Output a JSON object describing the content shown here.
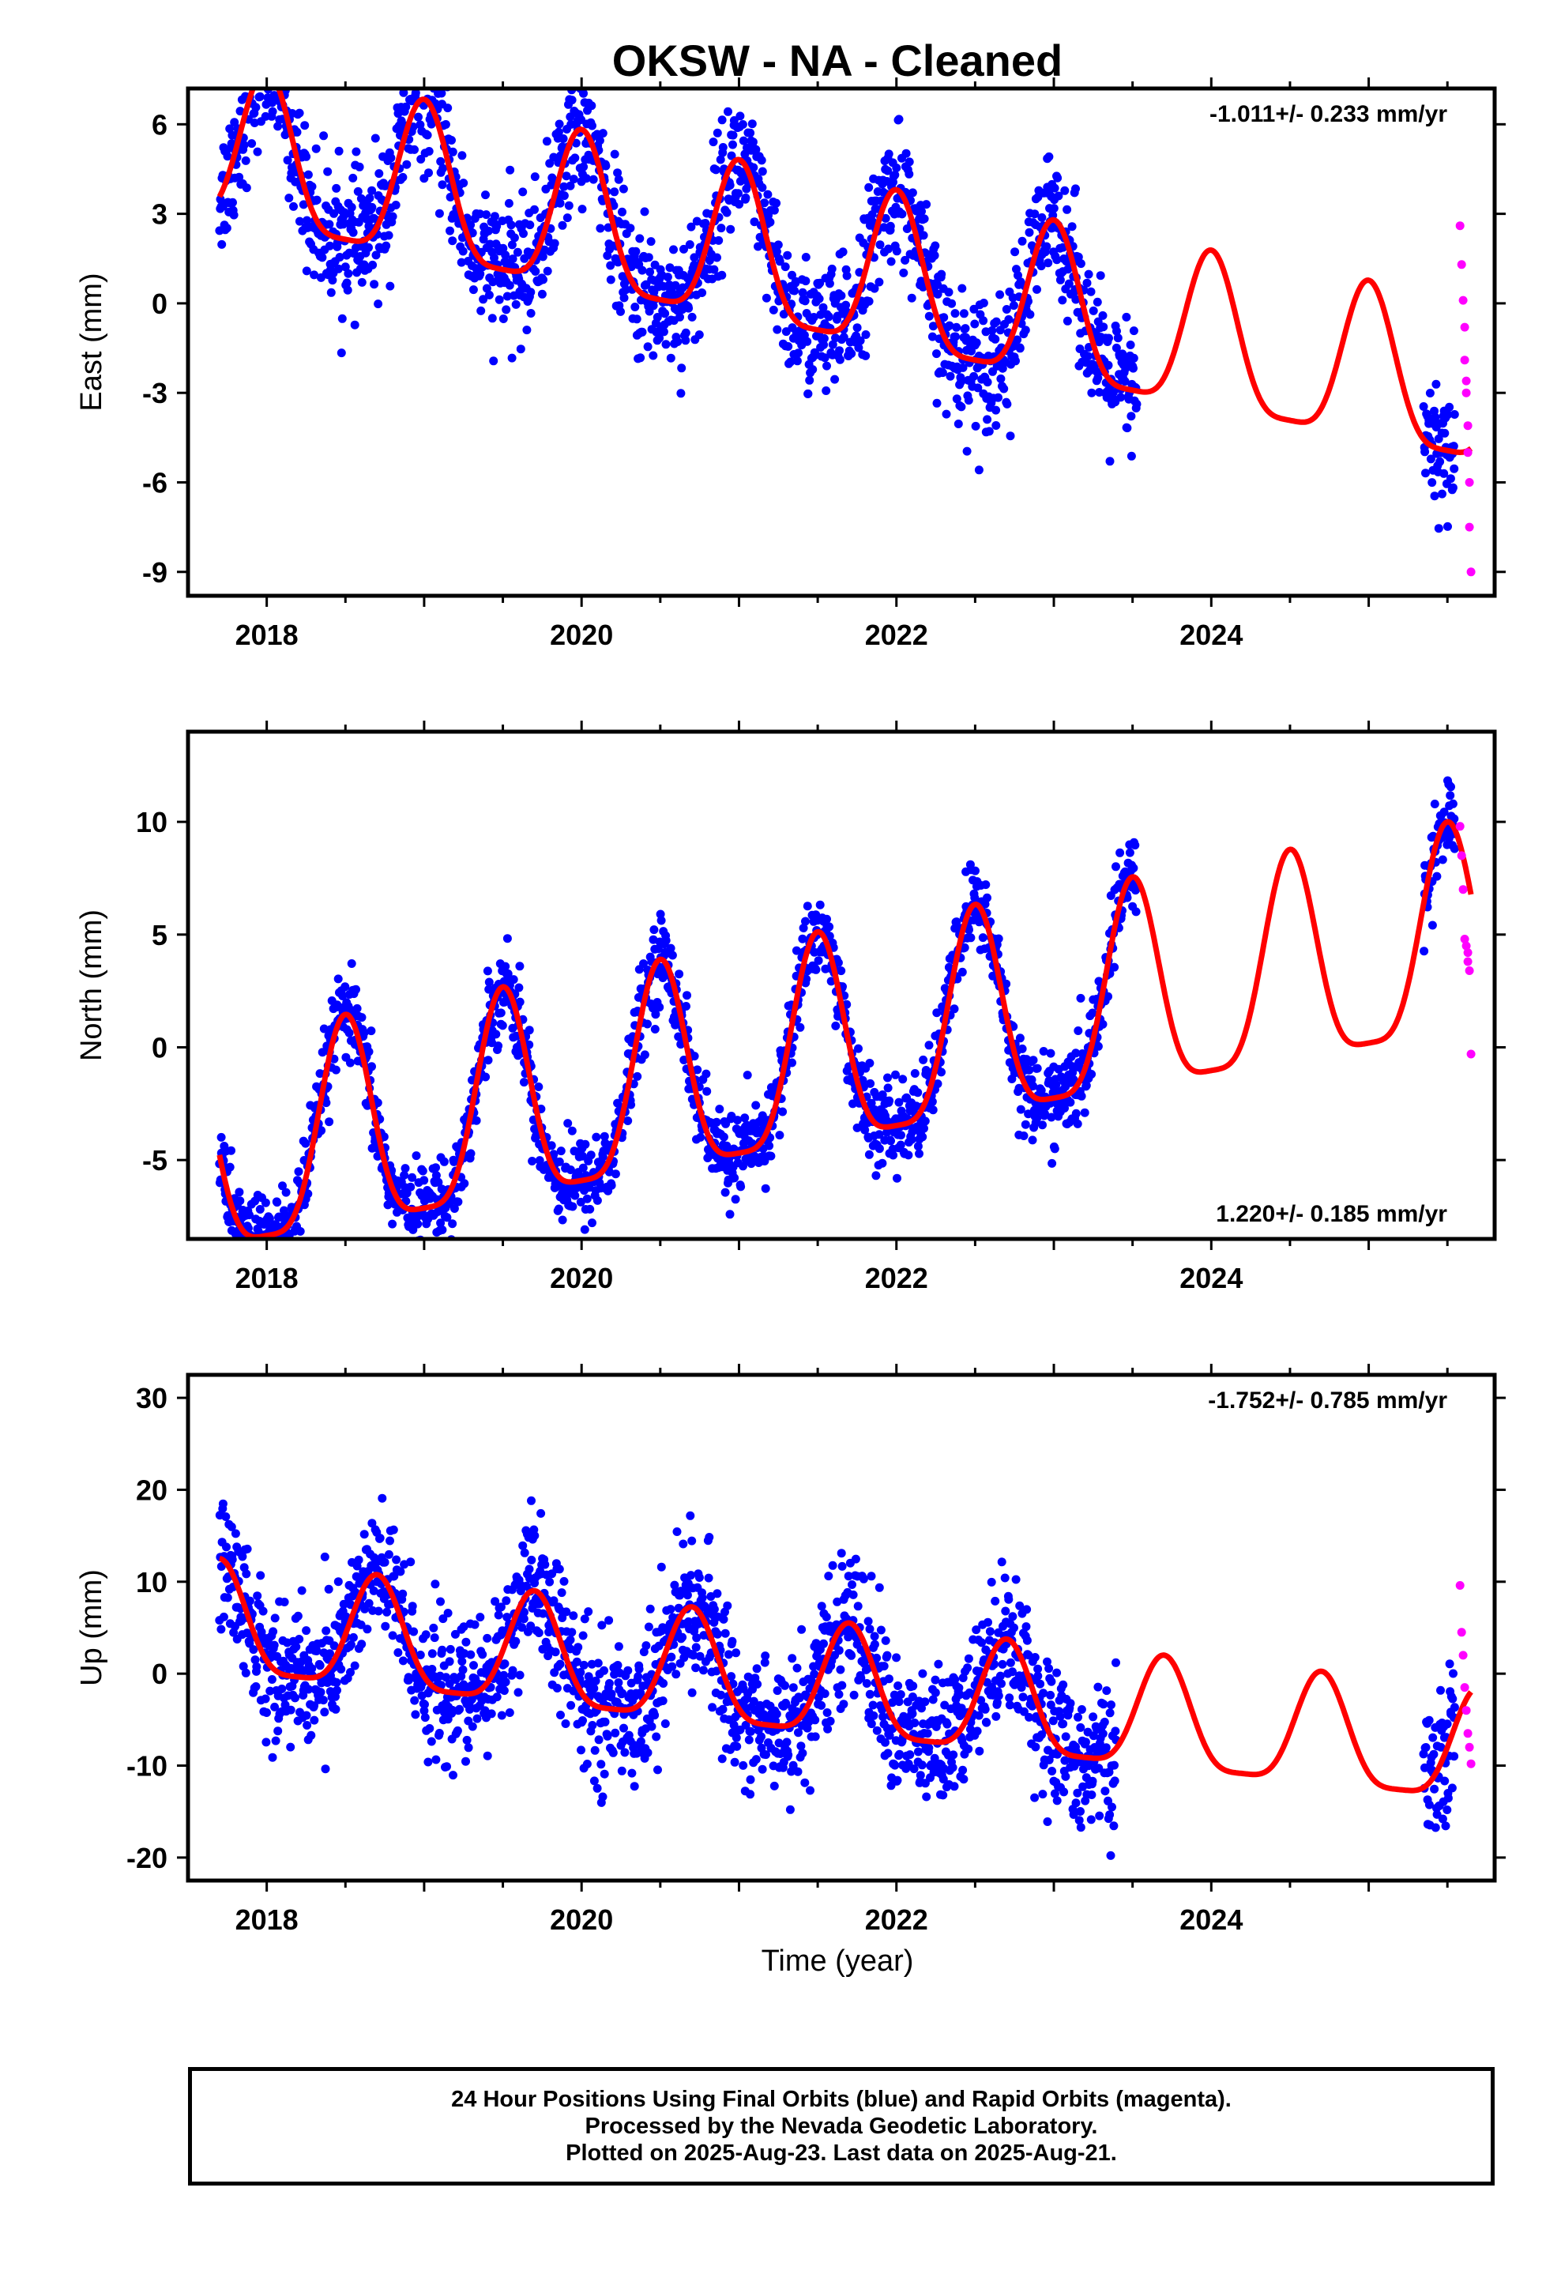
{
  "title": "OKSW  - NA - Cleaned",
  "xlabel": "Time (year)",
  "colors": {
    "final": "#0000ff",
    "rapid": "#ff00ff",
    "model": "#ff0000"
  },
  "chart_data": [
    {
      "type": "scatter",
      "component": "East",
      "ylabel": "East (mm)",
      "rate_label": "-1.011+/- 0.233 mm/yr",
      "rate_position": "top-right",
      "xlim": [
        2017.5,
        2025.8
      ],
      "ylim": [
        -9.8,
        7.2
      ],
      "xticks": [
        2018,
        2020,
        2022,
        2024
      ],
      "yticks": [
        -9,
        -6,
        -3,
        0,
        3,
        6
      ],
      "series": [
        {
          "name": "Final Orbits",
          "color": "#0000ff",
          "segments": [
            [
              2017.7,
              2023.53
            ],
            [
              2025.35,
              2025.55
            ]
          ]
        },
        {
          "name": "Rapid Orbits",
          "color": "#ff00ff",
          "x": [
            2025.58,
            2025.59,
            2025.6,
            2025.61,
            2025.61,
            2025.62,
            2025.62,
            2025.63,
            2025.63,
            2025.64,
            2025.64,
            2025.65
          ],
          "y": [
            2.6,
            1.3,
            0.1,
            -0.8,
            -1.9,
            -2.6,
            -3.0,
            -4.1,
            -5.0,
            -6.0,
            -7.5,
            -9.0
          ]
        }
      ],
      "model": {
        "x_range": [
          2017.7,
          2025.65
        ],
        "trend_mm_per_yr": -1.011,
        "y_at_2018": 4.6,
        "annual_amplitude": 2.6,
        "annual_phase_year": 2018.0
      },
      "grid": false
    },
    {
      "type": "scatter",
      "component": "North",
      "ylabel": "North (mm)",
      "rate_label": "1.220+/- 0.185 mm/yr",
      "rate_position": "bottom-right",
      "xlim": [
        2017.5,
        2025.8
      ],
      "ylim": [
        -8.5,
        14.0
      ],
      "xticks": [
        2018,
        2020,
        2022,
        2024
      ],
      "yticks": [
        -5,
        0,
        5,
        10
      ],
      "series": [
        {
          "name": "Final Orbits",
          "color": "#0000ff",
          "segments": [
            [
              2017.7,
              2023.53
            ],
            [
              2025.35,
              2025.55
            ]
          ]
        },
        {
          "name": "Rapid Orbits",
          "color": "#ff00ff",
          "x": [
            2025.58,
            2025.59,
            2025.6,
            2025.61,
            2025.62,
            2025.63,
            2025.63,
            2025.64,
            2025.65
          ],
          "y": [
            9.8,
            8.5,
            7.0,
            4.8,
            4.5,
            4.2,
            3.8,
            3.4,
            -0.3
          ]
        }
      ],
      "model": {
        "x_range": [
          2017.7,
          2025.65
        ],
        "trend_mm_per_yr": 1.22,
        "y_at_2018": -4.9,
        "annual_amplitude": 4.6,
        "annual_phase_year": 2018.5
      },
      "grid": false
    },
    {
      "type": "scatter",
      "component": "Up",
      "ylabel": "Up (mm)",
      "rate_label": "-1.752+/- 0.785 mm/yr",
      "rate_position": "top-right",
      "xlim": [
        2017.5,
        2025.8
      ],
      "ylim": [
        -22.5,
        32.5
      ],
      "xticks": [
        2018,
        2020,
        2022,
        2024
      ],
      "yticks": [
        -20,
        -10,
        0,
        10,
        20,
        30
      ],
      "series": [
        {
          "name": "Final Orbits",
          "color": "#0000ff",
          "segments": [
            [
              2017.7,
              2023.4
            ],
            [
              2025.35,
              2025.55
            ]
          ]
        },
        {
          "name": "Rapid Orbits",
          "color": "#ff00ff",
          "x": [
            2025.58,
            2025.59,
            2025.6,
            2025.61,
            2025.62,
            2025.63,
            2025.64,
            2025.65
          ],
          "y": [
            9.6,
            4.5,
            2.0,
            -1.5,
            -4.0,
            -6.5,
            -8.0,
            -9.8
          ]
        }
      ],
      "model": {
        "x_range": [
          2017.7,
          2025.65
        ],
        "trend_mm_per_yr": -1.752,
        "y_at_2018": 4.5,
        "annual_amplitude": 6.0,
        "annual_phase_year": 2017.7
      },
      "grid": false
    }
  ],
  "footer": {
    "line1": "24 Hour Positions Using Final Orbits (blue) and Rapid Orbits (magenta).",
    "line2": "Processed by the Nevada Geodetic Laboratory.",
    "line3": "Plotted on 2025-Aug-23. Last data on 2025-Aug-21."
  }
}
